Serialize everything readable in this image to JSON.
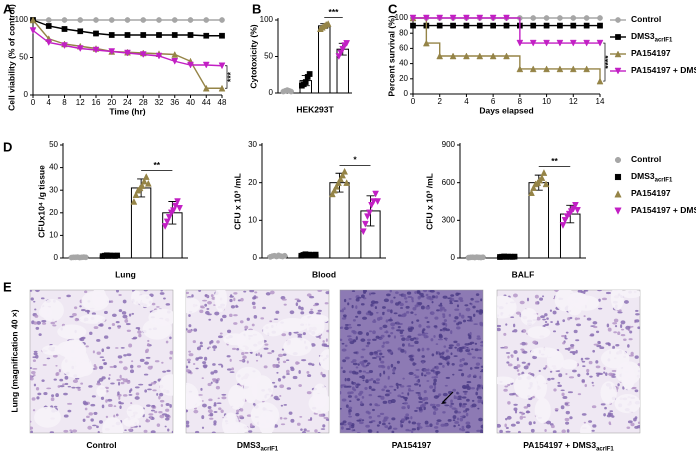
{
  "panel_labels": [
    "A",
    "B",
    "C",
    "D",
    "E"
  ],
  "chart_data": [
    {
      "type": "line",
      "ylabel": "Cell viability (% of control)",
      "xlabel": "Time (hr)",
      "x": [
        0,
        4,
        8,
        12,
        16,
        20,
        24,
        28,
        32,
        36,
        40,
        44,
        48
      ],
      "xlim": [
        0,
        48
      ],
      "xticks": [
        0,
        4,
        8,
        12,
        16,
        20,
        24,
        28,
        32,
        36,
        40,
        44,
        48
      ],
      "ylim": [
        0,
        100
      ],
      "yticks": [
        0,
        50,
        100
      ],
      "series": [
        {
          "name": "Control",
          "color": "#a6a6a6",
          "marker": "circle",
          "values": [
            100,
            100,
            100,
            100,
            100,
            100,
            100,
            100,
            100,
            100,
            100,
            100,
            100
          ]
        },
        {
          "name": "DMS3",
          "name_sub": "acrIF1",
          "color": "#000000",
          "marker": "square",
          "values": [
            100,
            92,
            88,
            85,
            82,
            80,
            80,
            80,
            80,
            80,
            80,
            79,
            79
          ]
        },
        {
          "name": "PA154197",
          "color": "#958447",
          "marker": "triangle-up",
          "values": [
            100,
            75,
            68,
            65,
            62,
            58,
            57,
            56,
            55,
            54,
            45,
            9,
            9
          ]
        },
        {
          "name": "PA154197 + DMS3",
          "name_sub": "acrIF1",
          "color": "#c21fc4",
          "marker": "triangle-down",
          "values": [
            86,
            70,
            66,
            62,
            60,
            58,
            56,
            54,
            52,
            45,
            40,
            40,
            39
          ]
        }
      ],
      "annotation": {
        "text": "***",
        "between": [
          2,
          3
        ]
      }
    },
    {
      "type": "bar",
      "ylabel": "Cytotoxicity (%)",
      "xlabel": "HEK293T",
      "categories": [
        null,
        null,
        null,
        null
      ],
      "values": [
        3,
        17,
        92,
        60
      ],
      "errors": [
        1.5,
        7,
        3,
        8
      ],
      "points": [
        [
          2,
          3,
          4,
          3,
          2
        ],
        [
          10,
          12,
          15,
          22,
          26
        ],
        [
          88,
          90,
          92,
          94,
          95
        ],
        [
          50,
          55,
          60,
          65,
          68
        ]
      ],
      "colors": [
        "#a6a6a6",
        "#000000",
        "#958447",
        "#c21fc4"
      ],
      "markers": [
        "circle",
        "square",
        "triangle-up",
        "triangle-down"
      ],
      "ylim": [
        0,
        100
      ],
      "yticks": [
        0,
        50,
        100
      ],
      "annotation": {
        "text": "***",
        "between": [
          2,
          3
        ]
      }
    },
    {
      "type": "line",
      "step": true,
      "ylabel": "Percent survival (%)",
      "xlabel": "Days elapsed",
      "x": [
        0,
        1,
        2,
        3,
        4,
        5,
        6,
        7,
        8,
        9,
        10,
        11,
        12,
        13,
        14
      ],
      "xlim": [
        0,
        14
      ],
      "xticks": [
        0,
        2,
        4,
        6,
        8,
        10,
        12,
        14
      ],
      "ylim": [
        0,
        100
      ],
      "yticks": [
        0,
        20,
        40,
        60,
        80,
        100
      ],
      "series": [
        {
          "color": "#a6a6a6",
          "marker": "circle",
          "values": [
            100,
            100,
            100,
            100,
            100,
            100,
            100,
            100,
            100,
            100,
            100,
            100,
            100,
            100,
            100
          ]
        },
        {
          "color": "#000000",
          "marker": "square",
          "values": [
            90,
            90,
            90,
            90,
            90,
            90,
            90,
            90,
            90,
            90,
            90,
            90,
            90,
            90,
            90
          ]
        },
        {
          "color": "#958447",
          "marker": "triangle-up",
          "values": [
            100,
            67,
            50,
            50,
            50,
            50,
            50,
            50,
            33,
            33,
            33,
            33,
            33,
            33,
            17
          ]
        },
        {
          "color": "#c21fc4",
          "marker": "triangle-down",
          "values": [
            100,
            100,
            100,
            100,
            100,
            100,
            100,
            100,
            67,
            67,
            67,
            67,
            67,
            67,
            67
          ]
        }
      ],
      "annotation": {
        "text": "****",
        "between": [
          3,
          2
        ]
      }
    },
    {
      "type": "bar",
      "ylabel": "CFUx10⁴ /g tissue",
      "xlabel": "Lung",
      "categories": [
        null,
        null,
        null,
        null
      ],
      "values": [
        0.3,
        1,
        31,
        20
      ],
      "errors": [
        0.3,
        0.5,
        4,
        5
      ],
      "points": [
        [
          0.2,
          0.3,
          0.3,
          0.4,
          0.2,
          0.3,
          0.4,
          0.3
        ],
        [
          0.8,
          1,
          1.2,
          0.9,
          1.1,
          1,
          0.9,
          1.1
        ],
        [
          25,
          28,
          30,
          31,
          32,
          34,
          36,
          33
        ],
        [
          14,
          16,
          18,
          20,
          21,
          23,
          25,
          22
        ]
      ],
      "colors": [
        "#a6a6a6",
        "#000000",
        "#958447",
        "#c21fc4"
      ],
      "markers": [
        "circle",
        "square",
        "triangle-up",
        "triangle-down"
      ],
      "ylim": [
        0,
        50
      ],
      "yticks": [
        0,
        10,
        20,
        30,
        40,
        50
      ],
      "annotation": {
        "text": "**",
        "between": [
          2,
          3
        ]
      }
    },
    {
      "type": "bar",
      "ylabel": "CFU x 10³ /mL",
      "xlabel": "Blood",
      "categories": [
        null,
        null,
        null,
        null
      ],
      "values": [
        0.5,
        0.8,
        20,
        12.5
      ],
      "errors": [
        0.5,
        0.5,
        2.5,
        4
      ],
      "points": [
        [
          0.3,
          0.5,
          0.6,
          0.4,
          0.7,
          0.5,
          0.4,
          0.6
        ],
        [
          0.6,
          0.8,
          1,
          0.7,
          0.9,
          0.8,
          0.7,
          0.9
        ],
        [
          17,
          18,
          19,
          20,
          21,
          22,
          23,
          20
        ],
        [
          7,
          9,
          11,
          12,
          14,
          15,
          17,
          15
        ]
      ],
      "colors": [
        "#a6a6a6",
        "#000000",
        "#958447",
        "#c21fc4"
      ],
      "markers": [
        "circle",
        "square",
        "triangle-up",
        "triangle-down"
      ],
      "ylim": [
        0,
        30
      ],
      "yticks": [
        0,
        10,
        20,
        30
      ],
      "annotation": {
        "text": "*",
        "between": [
          2,
          3
        ]
      }
    },
    {
      "type": "bar",
      "ylabel": "CFU x 10³ /mL",
      "xlabel": "BALF",
      "categories": [
        null,
        null,
        null,
        null
      ],
      "values": [
        5,
        10,
        600,
        350
      ],
      "errors": [
        5,
        5,
        60,
        70
      ],
      "points": [
        [
          3,
          5,
          6,
          4,
          7,
          5,
          4,
          6
        ],
        [
          8,
          10,
          12,
          9,
          11,
          10,
          9,
          11
        ],
        [
          520,
          560,
          590,
          600,
          620,
          640,
          680,
          590
        ],
        [
          260,
          300,
          330,
          350,
          370,
          390,
          420,
          380
        ]
      ],
      "colors": [
        "#a6a6a6",
        "#000000",
        "#958447",
        "#c21fc4"
      ],
      "markers": [
        "circle",
        "square",
        "triangle-up",
        "triangle-down"
      ],
      "ylim": [
        0,
        900
      ],
      "yticks": [
        0,
        300,
        600,
        900
      ],
      "annotation": {
        "text": "**",
        "between": [
          2,
          3
        ]
      }
    }
  ],
  "legend_d": [
    {
      "name": "Control"
    },
    {
      "name": "DMS3",
      "name_sub": "acrIF1"
    },
    {
      "name": "PA154197"
    },
    {
      "name": "PA154197 + DMS3",
      "name_sub": "acrIF1"
    }
  ],
  "histology": {
    "ylabel": "Lung (magnification 40 ×)",
    "images": [
      {
        "label": "Control"
      },
      {
        "label": "DMS3",
        "label_sub": "acrIF1"
      },
      {
        "label": "PA154197"
      },
      {
        "label": "PA154197 + DMS3",
        "label_sub": "acrIF1"
      }
    ]
  }
}
